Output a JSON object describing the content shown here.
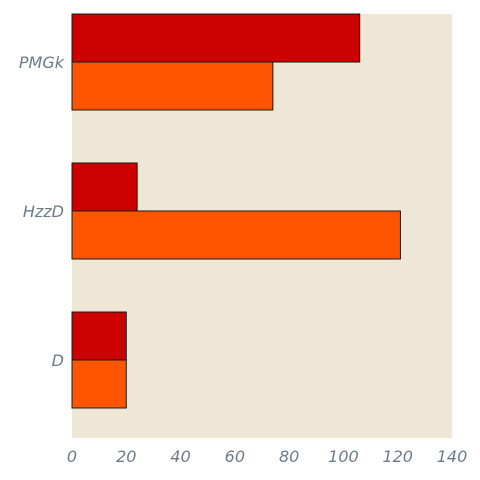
{
  "chart_data": {
    "type": "bar",
    "orientation": "horizontal",
    "categories": [
      "PMGk",
      "HzzD",
      "D"
    ],
    "series": [
      {
        "values": [
          106,
          24,
          20
        ],
        "color": "#cc0000"
      },
      {
        "values": [
          74,
          121,
          20
        ],
        "color": "#ff5500"
      }
    ],
    "xlim": [
      0,
      140
    ],
    "x_ticks": [
      0,
      20,
      40,
      60,
      80,
      100,
      120,
      140
    ],
    "title": "",
    "xlabel": "",
    "ylabel": "",
    "grid": false,
    "plot_background": "#efe7d5"
  }
}
